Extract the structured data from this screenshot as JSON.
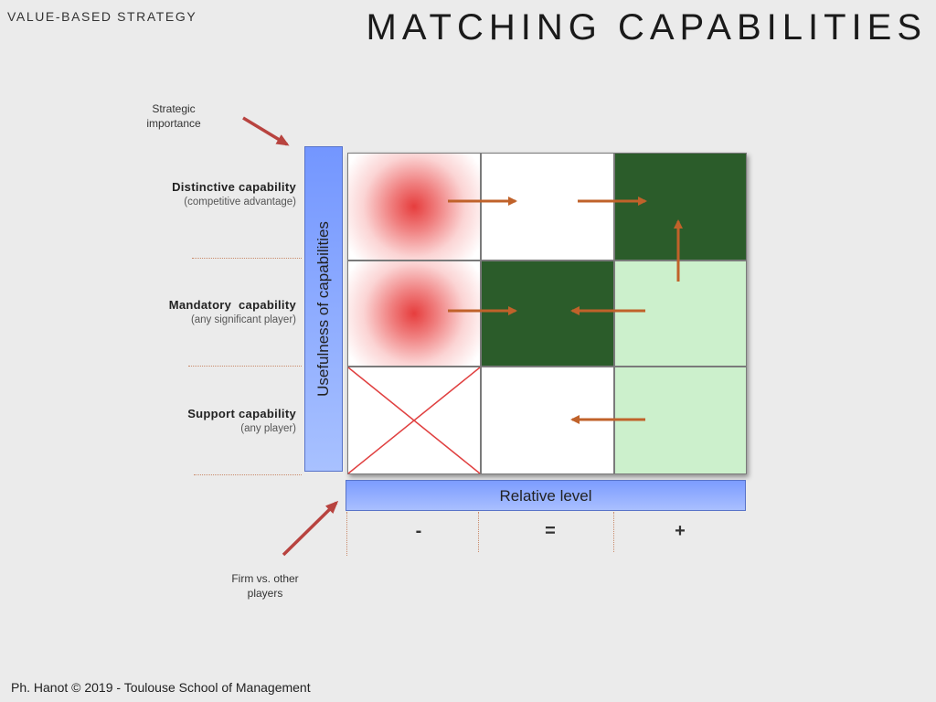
{
  "header": {
    "section": "VALUE-BASED STRATEGY",
    "title": "MATCHING CAPABILITIES"
  },
  "notes": {
    "strategic_line1": "Strategic",
    "strategic_line2": "importance",
    "firm_line1": "Firm vs. other",
    "firm_line2": "players"
  },
  "rows": [
    {
      "label": "Distinctive capability",
      "sublabel": "(competitive advantage)"
    },
    {
      "label": "Mandatory  capability",
      "sublabel": "(any significant player)"
    },
    {
      "label": "Support capability",
      "sublabel": "(any player)"
    }
  ],
  "axes": {
    "y_label": "Usefulness of capabilities",
    "x_label": "Relative level",
    "x_ticks": [
      "-",
      "=",
      "+"
    ]
  },
  "colors": {
    "dark_green": "#2b5c2a",
    "light_green": "#ccf0cc",
    "arrow": "#c0622a",
    "cross": "#e04040",
    "axis_blue": "#7396ff"
  },
  "footer": "Ph. Hanot © 2019  -  Toulouse School of Management"
}
